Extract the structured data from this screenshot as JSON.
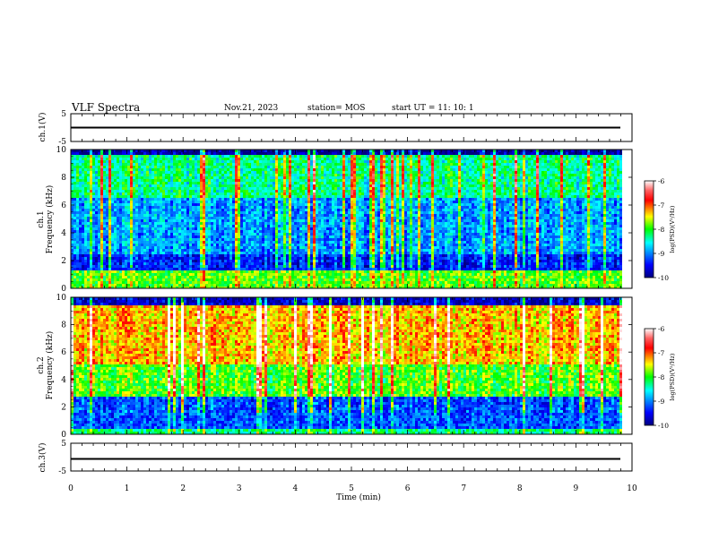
{
  "header": {
    "title": "VLF Spectra",
    "date": "Nov.21, 2023",
    "station": "station= MOS",
    "start": "start  UT =   11: 10: 1"
  },
  "panels": {
    "ch1_voltage": {
      "label": "ch.1(V)",
      "ticks": [
        "5",
        "-5"
      ]
    },
    "ch1_spec": {
      "label_ch": "ch.1",
      "label_y": "Frequency (kHz)",
      "ticks": [
        "10",
        "8",
        "6",
        "4",
        "2",
        "0"
      ]
    },
    "ch2_spec": {
      "label_ch": "ch.2",
      "label_y": "Frequency (kHz)",
      "ticks": [
        "10",
        "8",
        "6",
        "4",
        "2",
        "0"
      ]
    },
    "ch3_voltage": {
      "label": "ch.3(V)",
      "ticks": [
        "5",
        "-5"
      ]
    }
  },
  "xaxis": {
    "label": "Time (min)",
    "ticks": [
      "0",
      "1",
      "2",
      "3",
      "4",
      "5",
      "6",
      "7",
      "8",
      "9",
      "10"
    ]
  },
  "colorbars": [
    {
      "label": "log(PSD)(V²/Hz)",
      "ticks": [
        "-6",
        "-7",
        "-8",
        "-9",
        "-10"
      ]
    },
    {
      "label": "log(PSD)(V²/Hz)",
      "ticks": [
        "-6",
        "-7",
        "-8",
        "-9",
        "-10"
      ]
    }
  ],
  "chart_data": [
    {
      "type": "line",
      "title": "ch.1(V)",
      "ylabel": "ch.1(V)",
      "xlabel": "Time (min)",
      "xlim": [
        0,
        10
      ],
      "ylim": [
        -5,
        5
      ],
      "series": [
        {
          "x": [
            0,
            9.85
          ],
          "y": [
            0,
            0
          ]
        }
      ]
    },
    {
      "type": "heatmap",
      "title": "ch.1",
      "ylabel": "Frequency (kHz)",
      "xlabel": "Time (min)",
      "xlim": [
        0,
        9.85
      ],
      "ylim": [
        0,
        10
      ],
      "colorscale": {
        "label": "log(PSD)(V²/Hz)",
        "range": [
          -10,
          -6
        ]
      }
    },
    {
      "type": "heatmap",
      "title": "ch.2",
      "ylabel": "Frequency (kHz)",
      "xlabel": "Time (min)",
      "xlim": [
        0,
        9.85
      ],
      "ylim": [
        0,
        10
      ],
      "colorscale": {
        "label": "log(PSD)(V²/Hz)",
        "range": [
          -10,
          -6
        ]
      }
    },
    {
      "type": "line",
      "title": "ch.3(V)",
      "ylabel": "ch.3(V)",
      "xlabel": "Time (min)",
      "xlim": [
        0,
        10
      ],
      "ylim": [
        -5,
        5
      ],
      "series": [
        {
          "x": [
            0,
            9.85
          ],
          "y": [
            0,
            0
          ]
        }
      ]
    }
  ]
}
